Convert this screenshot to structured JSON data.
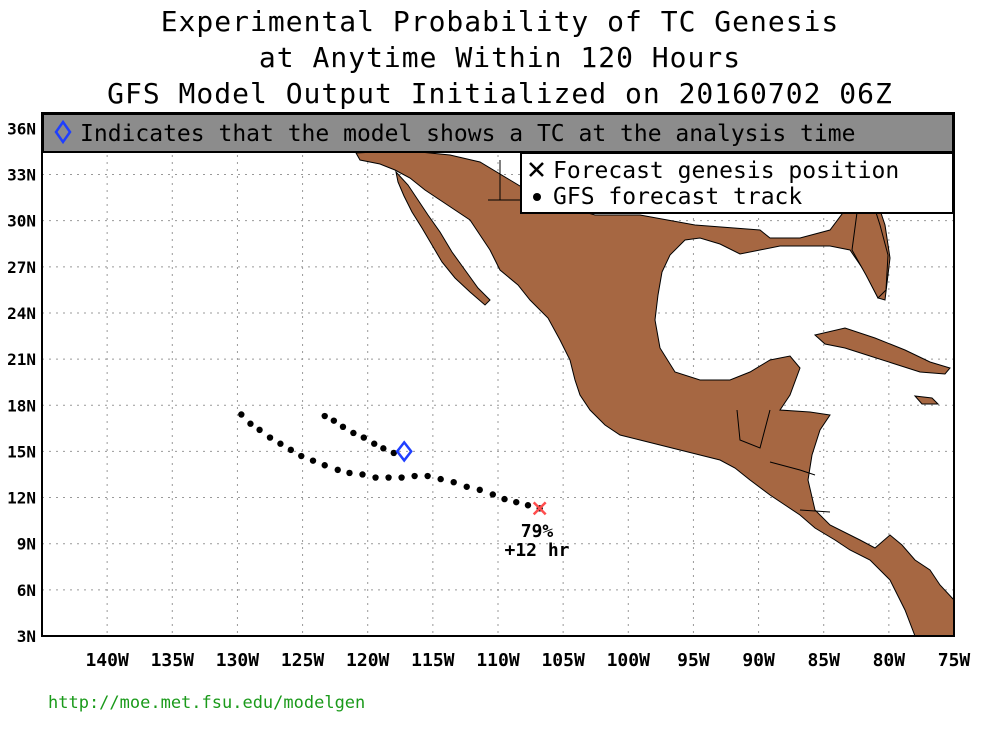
{
  "title": {
    "line1": "Experimental Probability of TC Genesis",
    "line2": "at Anytime Within 120 Hours",
    "line3": "GFS Model Output Initialized on 20160702 06Z"
  },
  "banner": {
    "text": "Indicates that the model shows a TC at the analysis time",
    "icon": "diamond-icon",
    "background": "#8c8c8c",
    "icon_color": "#1f3fff"
  },
  "legend": {
    "genesis_label": "Forecast genesis position",
    "track_label": "GFS forecast track"
  },
  "axes": {
    "lat_ticks": [
      "36N",
      "33N",
      "30N",
      "27N",
      "24N",
      "21N",
      "18N",
      "15N",
      "12N",
      "9N",
      "6N",
      "3N"
    ],
    "lon_ticks": [
      "140W",
      "135W",
      "130W",
      "125W",
      "120W",
      "115W",
      "110W",
      "105W",
      "100W",
      "95W",
      "90W",
      "85W",
      "80W",
      "75W"
    ]
  },
  "annotation": {
    "probability": "79%",
    "lead_time": "+12 hr"
  },
  "colors": {
    "land": "#a66742",
    "genesis_marker": "#ff4d4d",
    "track": "#000000",
    "url": "#1a9a1a"
  },
  "map_data": {
    "domain": {
      "lon": [
        -145,
        -75
      ],
      "lat": [
        3,
        37
      ]
    },
    "genesis": {
      "lon": -106.8,
      "lat": 11.3
    },
    "analysis_tc": {
      "lon": -117.2,
      "lat": 15.0
    },
    "tracks": [
      {
        "name": "track_a",
        "points": [
          [
            -106.8,
            11.3
          ],
          [
            -107.7,
            11.5
          ],
          [
            -108.6,
            11.7
          ],
          [
            -109.5,
            11.9
          ],
          [
            -110.4,
            12.2
          ],
          [
            -111.4,
            12.5
          ],
          [
            -112.4,
            12.7
          ],
          [
            -113.4,
            13.0
          ],
          [
            -114.4,
            13.2
          ],
          [
            -115.4,
            13.4
          ],
          [
            -116.4,
            13.4
          ],
          [
            -117.4,
            13.3
          ],
          [
            -118.4,
            13.3
          ],
          [
            -119.4,
            13.3
          ],
          [
            -120.4,
            13.5
          ],
          [
            -121.4,
            13.6
          ],
          [
            -122.3,
            13.8
          ],
          [
            -123.3,
            14.1
          ],
          [
            -124.2,
            14.4
          ],
          [
            -125.1,
            14.7
          ],
          [
            -125.9,
            15.1
          ],
          [
            -126.7,
            15.5
          ],
          [
            -127.5,
            15.9
          ],
          [
            -128.3,
            16.4
          ],
          [
            -129.0,
            16.8
          ],
          [
            -129.7,
            17.4
          ]
        ]
      },
      {
        "name": "track_b",
        "points": [
          [
            -118.0,
            14.9
          ],
          [
            -118.8,
            15.2
          ],
          [
            -119.5,
            15.5
          ],
          [
            -120.3,
            15.9
          ],
          [
            -121.1,
            16.2
          ],
          [
            -121.9,
            16.6
          ],
          [
            -122.6,
            17.0
          ],
          [
            -123.3,
            17.3
          ]
        ]
      }
    ]
  },
  "footer": {
    "url": "http://moe.met.fsu.edu/modelgen"
  }
}
